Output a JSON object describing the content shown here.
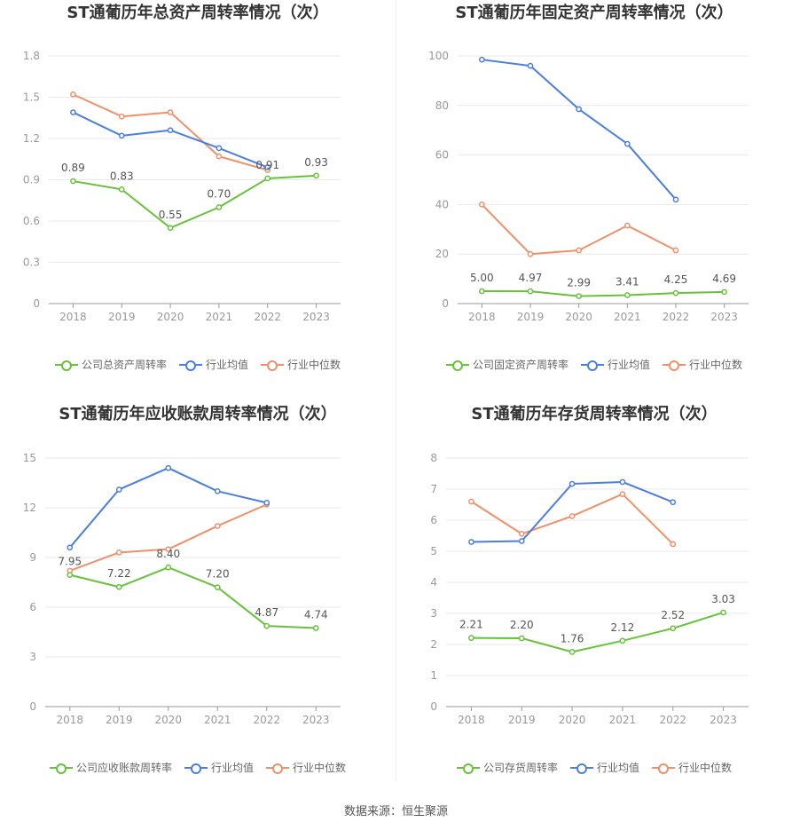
{
  "source": "数据来源：恒生聚源",
  "legend_company_color": "#67c23a",
  "chart_data": [
    {
      "type": "line",
      "title": "ST通葡历年总资产周转率情况（次）",
      "categories": [
        "2018",
        "2019",
        "2020",
        "2021",
        "2022",
        "2023"
      ],
      "yticks": [
        "0",
        "0.3",
        "0.6",
        "0.9",
        "1.2",
        "1.5",
        "1.8"
      ],
      "ylim": [
        0,
        1.8
      ],
      "series": [
        {
          "name": "公司总资产周转率",
          "color": "#67c23a",
          "values": [
            0.89,
            0.83,
            0.55,
            0.7,
            0.91,
            0.93
          ],
          "labels": [
            "0.89",
            "0.83",
            "0.55",
            "0.70",
            "0.91",
            "0.93"
          ]
        },
        {
          "name": "行业均值",
          "color": "#4a7fe0",
          "values": [
            1.39,
            1.22,
            1.26,
            1.13,
            0.99,
            null
          ]
        },
        {
          "name": "行业中位数",
          "color": "#f0906a",
          "values": [
            1.52,
            1.36,
            1.39,
            1.07,
            0.97,
            null
          ]
        }
      ]
    },
    {
      "type": "line",
      "title": "ST通葡历年固定资产周转率情况（次）",
      "categories": [
        "2018",
        "2019",
        "2020",
        "2021",
        "2022",
        "2023"
      ],
      "yticks": [
        "0",
        "20",
        "40",
        "60",
        "80",
        "100"
      ],
      "ylim": [
        0,
        100
      ],
      "series": [
        {
          "name": "公司固定资产周转率",
          "color": "#67c23a",
          "values": [
            5.0,
            4.97,
            2.99,
            3.41,
            4.25,
            4.69
          ],
          "labels": [
            "5.00",
            "4.97",
            "2.99",
            "3.41",
            "4.25",
            "4.69"
          ]
        },
        {
          "name": "行业均值",
          "color": "#4a7fe0",
          "values": [
            98.5,
            96.0,
            78.5,
            64.5,
            42.0,
            null
          ]
        },
        {
          "name": "行业中位数",
          "color": "#f0906a",
          "values": [
            40.0,
            20.0,
            21.5,
            31.5,
            21.5,
            null
          ]
        }
      ]
    },
    {
      "type": "line",
      "title": "ST通葡历年应收账款周转率情况（次）",
      "categories": [
        "2018",
        "2019",
        "2020",
        "2021",
        "2022",
        "2023"
      ],
      "yticks": [
        "0",
        "3",
        "6",
        "9",
        "12",
        "15"
      ],
      "ylim": [
        0,
        15
      ],
      "series": [
        {
          "name": "公司应收账款周转率",
          "color": "#67c23a",
          "values": [
            7.95,
            7.22,
            8.4,
            7.2,
            4.87,
            4.74
          ],
          "labels": [
            "7.95",
            "7.22",
            "8.40",
            "7.20",
            "4.87",
            "4.74"
          ]
        },
        {
          "name": "行业均值",
          "color": "#4a7fe0",
          "values": [
            9.6,
            13.1,
            14.4,
            13.0,
            12.3,
            null
          ]
        },
        {
          "name": "行业中位数",
          "color": "#f0906a",
          "values": [
            8.2,
            9.3,
            9.5,
            10.9,
            12.2,
            null
          ]
        }
      ]
    },
    {
      "type": "line",
      "title": "ST通葡历年存货周转率情况（次）",
      "categories": [
        "2018",
        "2019",
        "2020",
        "2021",
        "2022",
        "2023"
      ],
      "yticks": [
        "0",
        "1",
        "2",
        "3",
        "4",
        "5",
        "6",
        "7",
        "8"
      ],
      "ylim": [
        0,
        8
      ],
      "series": [
        {
          "name": "公司存货周转率",
          "color": "#67c23a",
          "values": [
            2.21,
            2.2,
            1.76,
            2.12,
            2.52,
            3.03
          ],
          "labels": [
            "2.21",
            "2.20",
            "1.76",
            "2.12",
            "2.52",
            "3.03"
          ]
        },
        {
          "name": "行业均值",
          "color": "#4a7fe0",
          "values": [
            5.3,
            5.33,
            7.17,
            7.23,
            6.58,
            null
          ]
        },
        {
          "name": "行业中位数",
          "color": "#f0906a",
          "values": [
            6.6,
            5.56,
            6.13,
            6.84,
            5.23,
            null
          ]
        }
      ]
    }
  ]
}
